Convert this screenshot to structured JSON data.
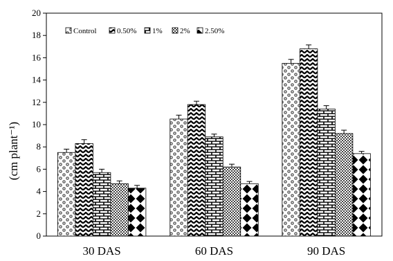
{
  "chart_data": {
    "type": "bar",
    "title": "",
    "xlabel": "",
    "ylabel": "(cm plant⁻¹)",
    "ylim": [
      0,
      20
    ],
    "yticks": [
      0,
      2,
      4,
      6,
      8,
      10,
      12,
      14,
      16,
      18,
      20
    ],
    "categories": [
      "30 DAS",
      "60 DAS",
      "90 DAS"
    ],
    "legend_position": "top-left",
    "error_bars": true,
    "series": [
      {
        "name": "Control",
        "values": [
          7.5,
          10.5,
          15.5
        ],
        "errors": [
          0.3,
          0.35,
          0.35
        ]
      },
      {
        "name": "0.50%",
        "values": [
          8.3,
          11.8,
          16.8
        ],
        "errors": [
          0.35,
          0.3,
          0.35
        ]
      },
      {
        "name": "1%",
        "values": [
          5.7,
          8.9,
          11.4
        ],
        "errors": [
          0.3,
          0.25,
          0.3
        ]
      },
      {
        "name": "2%",
        "values": [
          4.7,
          6.2,
          9.2
        ],
        "errors": [
          0.25,
          0.25,
          0.3
        ]
      },
      {
        "name": "2.50%",
        "values": [
          4.3,
          4.7,
          7.4
        ],
        "errors": [
          0.25,
          0.2,
          0.2
        ]
      }
    ]
  }
}
